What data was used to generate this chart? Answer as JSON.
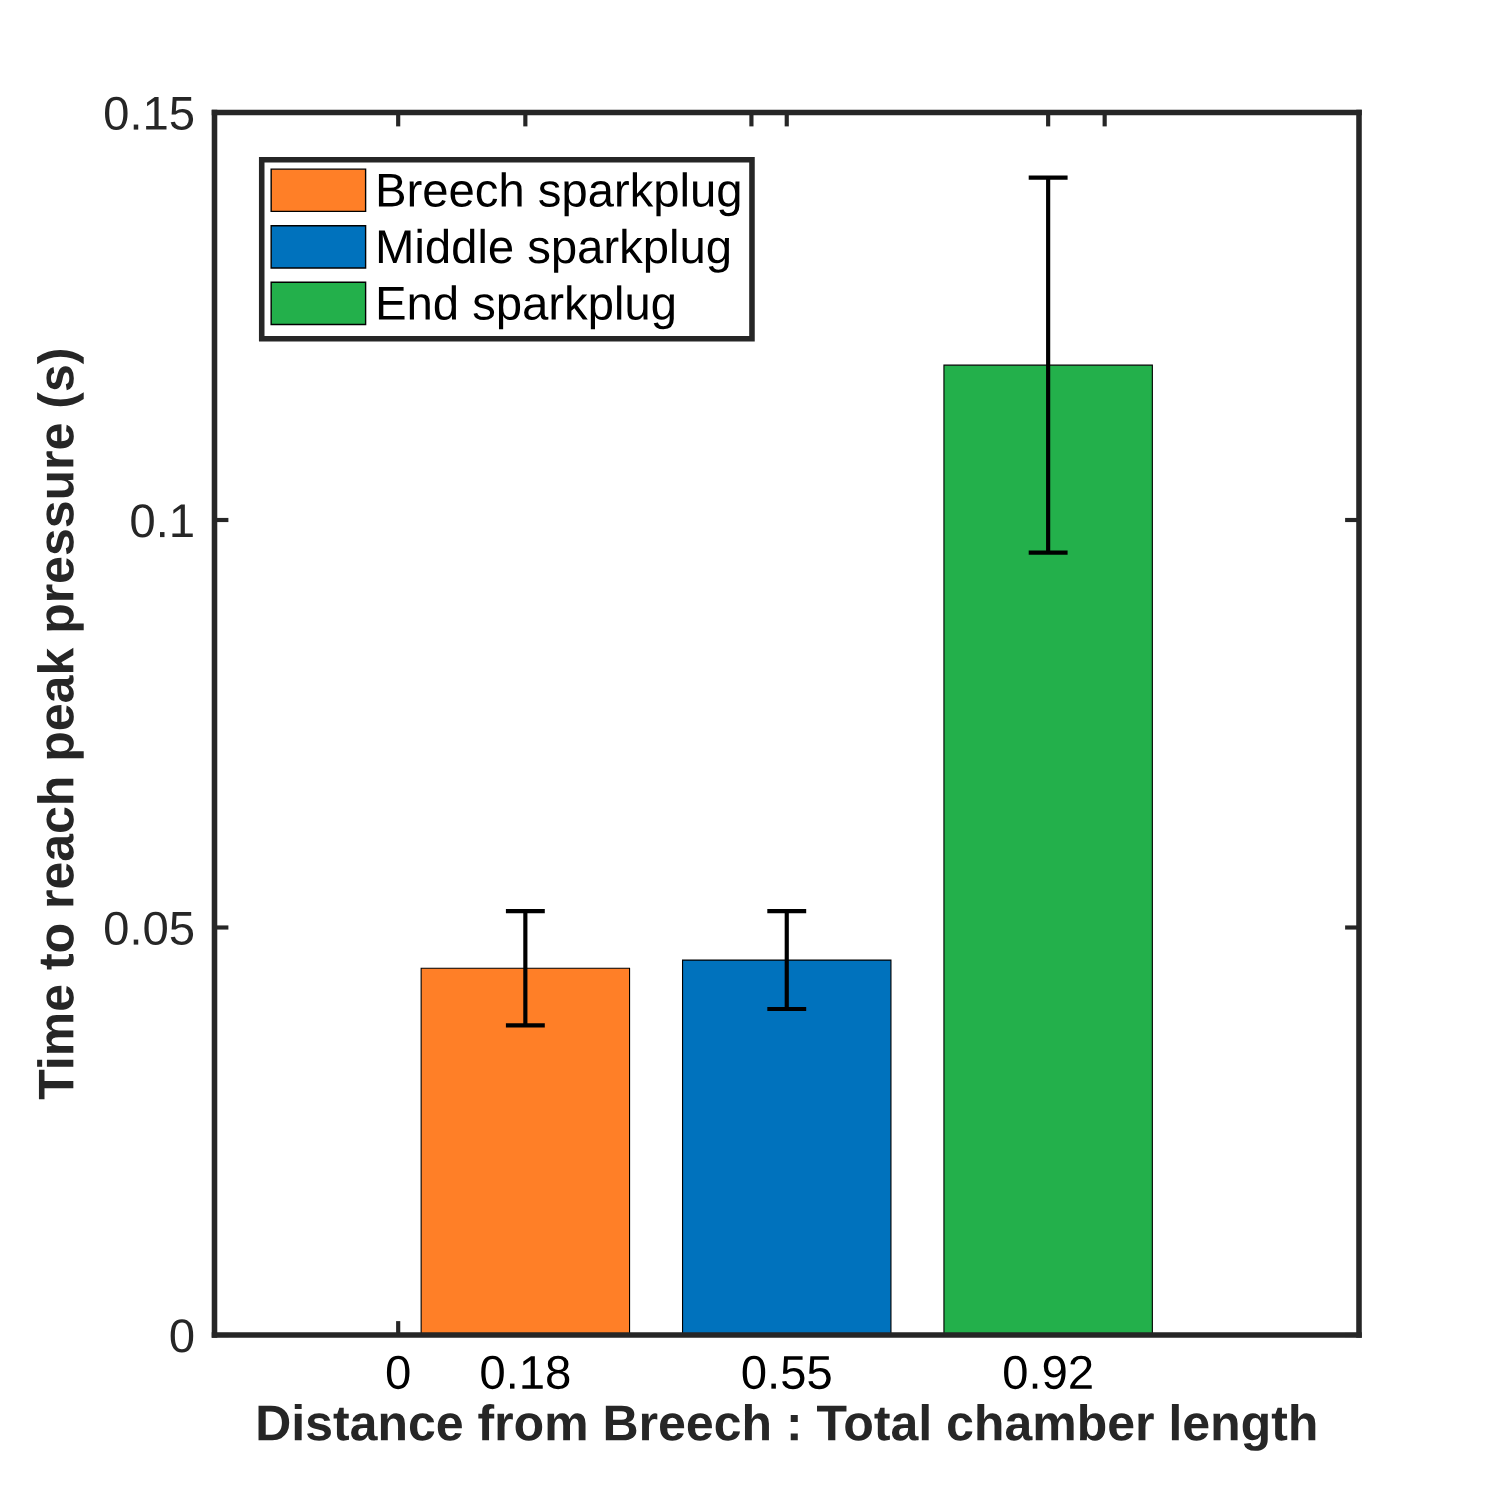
{
  "chart_data": {
    "type": "bar",
    "xlabel": "Distance from Breech : Total chamber length",
    "ylabel": "Time to reach peak pressure (s)",
    "series": [
      {
        "name": "Breech sparkplug",
        "color": "#ff7f27",
        "x": [
          0.18
        ],
        "values": [
          0.045
        ],
        "errors": [
          [
            0.038,
            0.052
          ]
        ]
      },
      {
        "name": "Middle sparkplug",
        "color": "#0072bd",
        "x": [
          0.55
        ],
        "values": [
          0.046
        ],
        "errors": [
          [
            0.04,
            0.052
          ]
        ]
      },
      {
        "name": "End sparkplug",
        "color": "#23b04b",
        "x": [
          0.92
        ],
        "values": [
          0.119
        ],
        "errors": [
          [
            0.096,
            0.142
          ]
        ]
      }
    ],
    "xlim": [
      -0.26,
      1.36
    ],
    "xticks": [
      0,
      0.18,
      {
        "value": 0.5,
        "label": null
      },
      0.55,
      0.92,
      {
        "value": 1,
        "label": null
      }
    ],
    "ylim": [
      0,
      0.15
    ],
    "yticks": [
      0,
      0.05,
      0.1,
      0.15
    ],
    "grid": false,
    "legend": "top left"
  }
}
